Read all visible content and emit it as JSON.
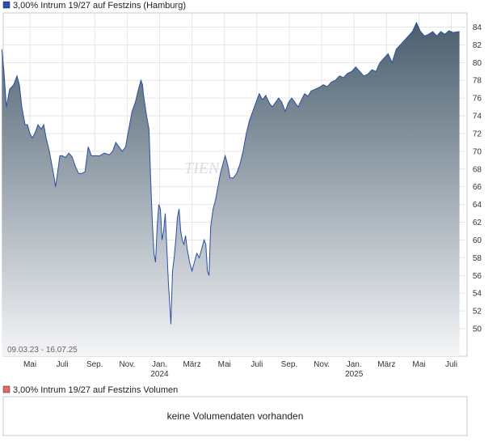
{
  "chart_data": [
    {
      "type": "area",
      "title": "3,00% Intrum 19/27 auf Festzins (Hamburg)",
      "date_range": "09.03.23 - 16.07.25",
      "x_tick_labels": [
        {
          "label": "Mai",
          "year": ""
        },
        {
          "label": "Juli",
          "year": ""
        },
        {
          "label": "Sep.",
          "year": ""
        },
        {
          "label": "Nov.",
          "year": ""
        },
        {
          "label": "Jan.",
          "year": "2024"
        },
        {
          "label": "März",
          "year": ""
        },
        {
          "label": "Mai",
          "year": ""
        },
        {
          "label": "Juli",
          "year": ""
        },
        {
          "label": "Sep.",
          "year": ""
        },
        {
          "label": "Nov.",
          "year": ""
        },
        {
          "label": "Jan.",
          "year": "2025"
        },
        {
          "label": "März",
          "year": ""
        },
        {
          "label": "Mai",
          "year": ""
        },
        {
          "label": "Juli",
          "year": ""
        }
      ],
      "y_ticks": [
        50,
        52,
        54,
        56,
        58,
        60,
        62,
        64,
        66,
        68,
        70,
        72,
        74,
        76,
        78,
        80,
        82,
        84
      ],
      "ylim": [
        47.5,
        86.5
      ],
      "x_unit": "months since 2023-03-01",
      "xlim": [
        0.27,
        28.5
      ],
      "grid": true,
      "line_color": "#2a4fa3",
      "fill_top_color": "#4a5e6e",
      "fill_bottom_color": "#f4f5f7",
      "legend_color": "#2a4fa3",
      "watermark": "TIEN",
      "points": [
        [
          0.27,
          81.5
        ],
        [
          0.4,
          79.0
        ],
        [
          0.55,
          75.0
        ],
        [
          0.75,
          77.0
        ],
        [
          1.0,
          77.5
        ],
        [
          1.2,
          78.5
        ],
        [
          1.35,
          77.5
        ],
        [
          1.5,
          75.0
        ],
        [
          1.7,
          73.0
        ],
        [
          1.85,
          73.0
        ],
        [
          2.0,
          72.0
        ],
        [
          2.15,
          71.5
        ],
        [
          2.3,
          72.0
        ],
        [
          2.5,
          73.0
        ],
        [
          2.7,
          72.5
        ],
        [
          2.85,
          73.0
        ],
        [
          3.0,
          71.5
        ],
        [
          3.2,
          70.0
        ],
        [
          3.4,
          68.0
        ],
        [
          3.5,
          67.0
        ],
        [
          3.58,
          66.0
        ],
        [
          3.7,
          67.5
        ],
        [
          3.85,
          69.5
        ],
        [
          4.0,
          69.5
        ],
        [
          4.2,
          69.3
        ],
        [
          4.4,
          69.8
        ],
        [
          4.6,
          69.4
        ],
        [
          4.8,
          68.3
        ],
        [
          5.0,
          67.5
        ],
        [
          5.2,
          67.5
        ],
        [
          5.4,
          67.7
        ],
        [
          5.6,
          70.5
        ],
        [
          5.8,
          69.5
        ],
        [
          6.0,
          69.5
        ],
        [
          6.3,
          69.5
        ],
        [
          6.6,
          69.8
        ],
        [
          6.9,
          69.6
        ],
        [
          7.1,
          70.0
        ],
        [
          7.3,
          71.0
        ],
        [
          7.5,
          70.5
        ],
        [
          7.7,
          70.0
        ],
        [
          7.9,
          70.5
        ],
        [
          8.1,
          72.5
        ],
        [
          8.3,
          74.5
        ],
        [
          8.5,
          75.5
        ],
        [
          8.7,
          77.0
        ],
        [
          8.85,
          78.0
        ],
        [
          8.95,
          77.5
        ],
        [
          9.0,
          76.5
        ],
        [
          9.2,
          74.0
        ],
        [
          9.35,
          72.5
        ],
        [
          9.45,
          67.0
        ],
        [
          9.55,
          62.0
        ],
        [
          9.65,
          58.5
        ],
        [
          9.75,
          57.5
        ],
        [
          9.85,
          61.5
        ],
        [
          9.95,
          64.0
        ],
        [
          10.05,
          63.5
        ],
        [
          10.15,
          60.0
        ],
        [
          10.25,
          61.0
        ],
        [
          10.35,
          63.0
        ],
        [
          10.45,
          59.0
        ],
        [
          10.55,
          55.0
        ],
        [
          10.62,
          53.0
        ],
        [
          10.7,
          50.5
        ],
        [
          10.8,
          56.5
        ],
        [
          10.9,
          58.0
        ],
        [
          11.0,
          60.0
        ],
        [
          11.1,
          62.5
        ],
        [
          11.2,
          63.5
        ],
        [
          11.3,
          61.0
        ],
        [
          11.4,
          60.0
        ],
        [
          11.5,
          59.5
        ],
        [
          11.6,
          60.5
        ],
        [
          11.7,
          59.0
        ],
        [
          11.85,
          57.5
        ],
        [
          12.0,
          56.5
        ],
        [
          12.15,
          57.5
        ],
        [
          12.3,
          58.5
        ],
        [
          12.45,
          58.0
        ],
        [
          12.6,
          59.0
        ],
        [
          12.75,
          60.0
        ],
        [
          12.85,
          59.5
        ],
        [
          12.95,
          56.5
        ],
        [
          13.05,
          56.0
        ],
        [
          13.15,
          61.5
        ],
        [
          13.3,
          63.5
        ],
        [
          13.45,
          64.5
        ],
        [
          13.6,
          66.0
        ],
        [
          13.75,
          67.5
        ],
        [
          13.9,
          68.5
        ],
        [
          14.05,
          69.5
        ],
        [
          14.2,
          68.5
        ],
        [
          14.35,
          67.0
        ],
        [
          14.55,
          67.0
        ],
        [
          14.75,
          67.5
        ],
        [
          14.95,
          68.5
        ],
        [
          15.15,
          70.0
        ],
        [
          15.35,
          72.0
        ],
        [
          15.55,
          73.5
        ],
        [
          15.75,
          74.5
        ],
        [
          15.95,
          75.5
        ],
        [
          16.15,
          76.5
        ],
        [
          16.35,
          75.8
        ],
        [
          16.55,
          76.3
        ],
        [
          16.75,
          75.5
        ],
        [
          16.95,
          75.0
        ],
        [
          17.15,
          75.5
        ],
        [
          17.35,
          76.0
        ],
        [
          17.55,
          75.5
        ],
        [
          17.75,
          74.5
        ],
        [
          17.95,
          75.5
        ],
        [
          18.15,
          76.0
        ],
        [
          18.35,
          75.5
        ],
        [
          18.55,
          75.0
        ],
        [
          18.75,
          75.8
        ],
        [
          18.95,
          76.5
        ],
        [
          19.15,
          76.2
        ],
        [
          19.35,
          76.8
        ],
        [
          19.6,
          77.0
        ],
        [
          19.85,
          77.2
        ],
        [
          20.1,
          77.5
        ],
        [
          20.35,
          77.3
        ],
        [
          20.6,
          77.8
        ],
        [
          20.85,
          78.0
        ],
        [
          21.1,
          78.5
        ],
        [
          21.35,
          78.3
        ],
        [
          21.6,
          78.8
        ],
        [
          21.85,
          79.0
        ],
        [
          22.1,
          79.5
        ],
        [
          22.35,
          79.0
        ],
        [
          22.6,
          78.5
        ],
        [
          22.85,
          78.7
        ],
        [
          23.1,
          79.2
        ],
        [
          23.35,
          79.0
        ],
        [
          23.6,
          80.0
        ],
        [
          23.85,
          80.5
        ],
        [
          24.1,
          81.0
        ],
        [
          24.35,
          80.0
        ],
        [
          24.6,
          81.5
        ],
        [
          24.85,
          82.0
        ],
        [
          25.1,
          82.5
        ],
        [
          25.35,
          83.0
        ],
        [
          25.6,
          83.5
        ],
        [
          25.85,
          84.5
        ],
        [
          26.1,
          83.5
        ],
        [
          26.35,
          83.0
        ],
        [
          26.6,
          83.2
        ],
        [
          26.85,
          83.5
        ],
        [
          27.1,
          83.0
        ],
        [
          27.35,
          83.5
        ],
        [
          27.6,
          83.2
        ],
        [
          27.85,
          83.6
        ],
        [
          28.1,
          83.4
        ],
        [
          28.5,
          83.5
        ]
      ]
    },
    {
      "type": "bar",
      "title": "3,00% Intrum 19/27 auf Festzins Volumen",
      "legend_color": "#e06a6a",
      "message": "keine Volumendaten vorhanden"
    }
  ]
}
